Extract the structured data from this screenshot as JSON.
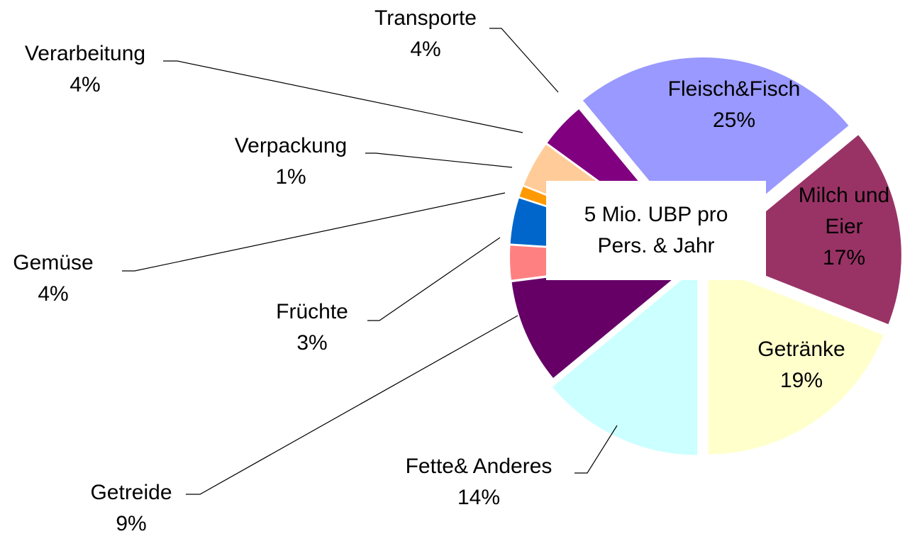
{
  "chart_data": {
    "type": "pie",
    "annotation": "5 Mio. UBP pro Pers. & Jahr",
    "categories": [
      "Fleisch&Fisch",
      "Milch und Eier",
      "Getränke",
      "Fette& Anderes",
      "Getreide",
      "Früchte",
      "Gemüse",
      "Verpackung",
      "Verarbeitung",
      "Transporte"
    ],
    "values": [
      25,
      17,
      19,
      14,
      9,
      3,
      4,
      1,
      4,
      4
    ],
    "value_labels": [
      "25%",
      "17%",
      "19%",
      "14%",
      "9%",
      "3%",
      "4%",
      "1%",
      "4%",
      "4%"
    ],
    "colors": [
      "#9999ff",
      "#993366",
      "#ffffcc",
      "#ccffff",
      "#660066",
      "#ff8080",
      "#0066cc",
      "#ff9900",
      "#ffcc99",
      "#800080"
    ]
  }
}
